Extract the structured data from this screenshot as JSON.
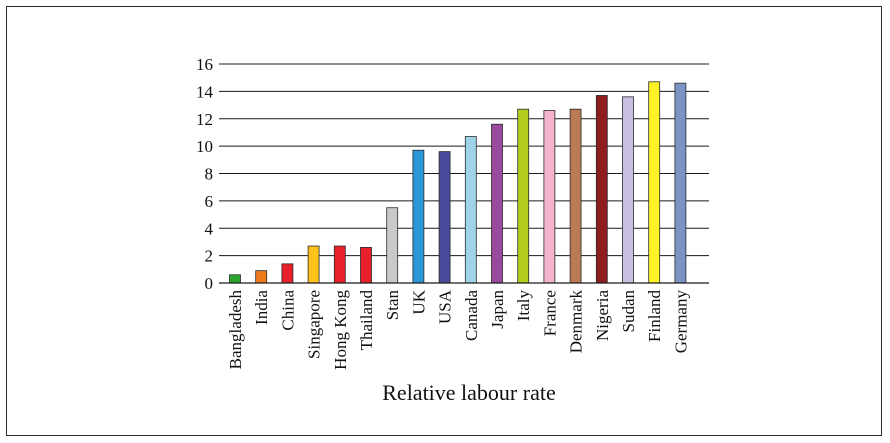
{
  "chart_data": {
    "type": "bar",
    "xlabel": "Relative labour rate",
    "ylabel": "",
    "ylim": [
      0,
      16
    ],
    "yticks": [
      0,
      2,
      4,
      6,
      8,
      10,
      12,
      14,
      16
    ],
    "grid": "horizontal",
    "legend": "none",
    "categories": [
      "Bangladesh",
      "India",
      "China",
      "Singapore",
      "Hong Kong",
      "Thailand",
      "Stan",
      "UK",
      "USA",
      "Canada",
      "Japan",
      "Italy",
      "France",
      "Denmark",
      "Nigeria",
      "Sudan",
      "Finland",
      "Germany"
    ],
    "values": [
      0.6,
      0.9,
      1.4,
      2.7,
      2.7,
      2.6,
      5.5,
      9.7,
      9.6,
      10.7,
      11.6,
      12.7,
      12.6,
      12.7,
      13.7,
      13.6,
      14.7,
      14.6
    ],
    "colors": [
      "#2aa52f",
      "#f07b1c",
      "#e8202a",
      "#ffc21a",
      "#e8202a",
      "#e8202a",
      "#c9c9c9",
      "#2b96d8",
      "#4a4b9c",
      "#9fd3e9",
      "#9a4a9c",
      "#b5cc1e",
      "#f4b3cf",
      "#b97a55",
      "#8e1d1d",
      "#c9bfe0",
      "#fff226",
      "#7d93c4"
    ]
  }
}
